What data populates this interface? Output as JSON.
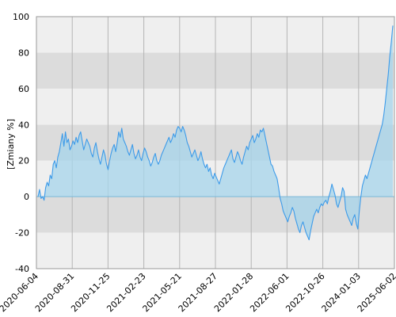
{
  "chart_data": {
    "type": "area",
    "title": "",
    "xlabel": "",
    "ylabel": "[Zmiany %]",
    "ylim": [
      -40,
      100
    ],
    "yticks": [
      -40,
      -20,
      0,
      20,
      40,
      60,
      80,
      100
    ],
    "grid": true,
    "xtick_labels": [
      "2020-06-04",
      "2020-08-31",
      "2020-11-25",
      "2021-02-23",
      "2021-05-21",
      "2021-08-27",
      "2022-01-28",
      "2022-06-01",
      "2022-10-26",
      "2024-01-03",
      "2025-06-02"
    ],
    "colors": {
      "line": "#3d9be9",
      "fill": "#a8d5ea",
      "band_light": "#efefef",
      "band_dark": "#dcdcdc",
      "zero": "#7ab8d8"
    },
    "series": [
      {
        "values": [
          0,
          4,
          -1,
          0,
          -2,
          5,
          8,
          6,
          12,
          10,
          18,
          20,
          16,
          22,
          25,
          30,
          35,
          28,
          36,
          30,
          32,
          26,
          28,
          31,
          29,
          33,
          30,
          34,
          36,
          31,
          26,
          29,
          32,
          30,
          28,
          24,
          22,
          27,
          30,
          25,
          21,
          18,
          22,
          26,
          23,
          18,
          15,
          20,
          24,
          27,
          29,
          25,
          30,
          36,
          33,
          38,
          32,
          30,
          28,
          25,
          23,
          26,
          29,
          24,
          21,
          23,
          26,
          22,
          20,
          24,
          27,
          25,
          22,
          20,
          17,
          19,
          22,
          24,
          20,
          18,
          20,
          23,
          25,
          27,
          29,
          31,
          33,
          30,
          32,
          35,
          33,
          37,
          39,
          38,
          36,
          39,
          37,
          34,
          30,
          28,
          25,
          22,
          24,
          26,
          23,
          20,
          22,
          25,
          21,
          18,
          16,
          18,
          14,
          16,
          12,
          10,
          13,
          11,
          9,
          7,
          10,
          13,
          16,
          18,
          20,
          22,
          24,
          26,
          21,
          19,
          22,
          25,
          23,
          20,
          18,
          22,
          25,
          28,
          26,
          30,
          32,
          34,
          30,
          32,
          35,
          33,
          37,
          36,
          38,
          34,
          30,
          26,
          22,
          18,
          17,
          14,
          12,
          10,
          5,
          -1,
          -4,
          -8,
          -10,
          -12,
          -14,
          -11,
          -9,
          -6,
          -8,
          -12,
          -15,
          -18,
          -20,
          -16,
          -14,
          -17,
          -20,
          -22,
          -24,
          -19,
          -15,
          -11,
          -9,
          -7,
          -9,
          -6,
          -4,
          -5,
          -3,
          -2,
          -4,
          0,
          3,
          7,
          4,
          1,
          -4,
          -6,
          -3,
          0,
          5,
          3,
          -7,
          -10,
          -12,
          -14,
          -16,
          -12,
          -10,
          -15,
          -18,
          -8,
          0,
          6,
          9,
          12,
          10,
          13,
          16,
          19,
          22,
          25,
          28,
          31,
          34,
          37,
          40,
          45,
          52,
          60,
          68,
          78,
          86,
          95
        ]
      }
    ]
  }
}
